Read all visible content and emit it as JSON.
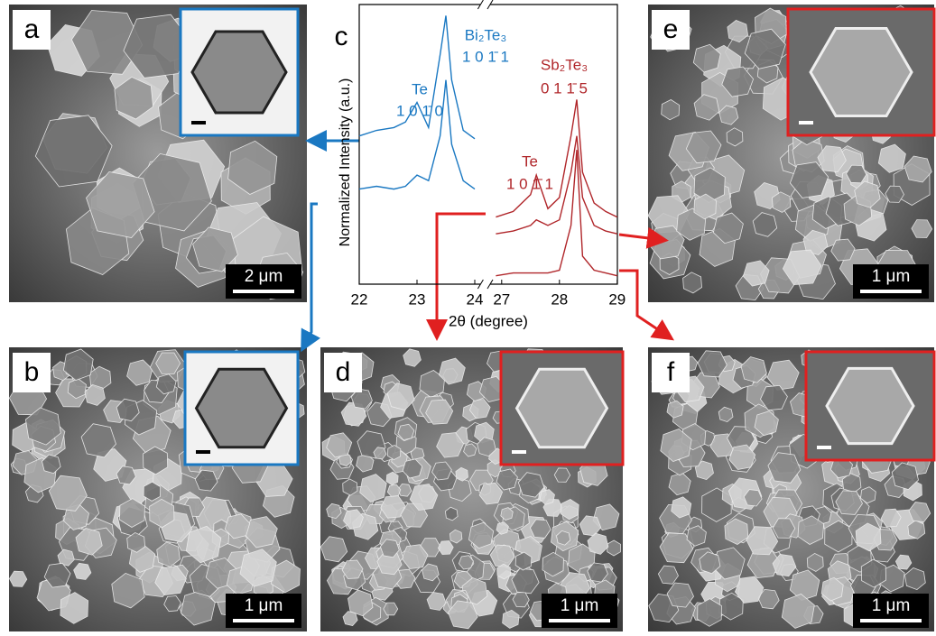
{
  "panels": [
    {
      "label": "a",
      "scale_bar": "2 μm"
    },
    {
      "label": "b",
      "scale_bar": "1 μm"
    },
    {
      "label": "d",
      "scale_bar": "1 μm"
    },
    {
      "label": "e",
      "scale_bar": "1 μm"
    },
    {
      "label": "f",
      "scale_bar": "1 μm"
    }
  ],
  "chart_data": {
    "type": "line",
    "panel_label": "c",
    "xlabel": "2θ (degree)",
    "ylabel": "Normalized Intensity (a.u.)",
    "xlim": [
      22,
      29
    ],
    "xbreak": [
      24.1,
      26.8
    ],
    "ylim": [
      0,
      1
    ],
    "xticks": [
      22,
      23,
      24,
      27,
      28,
      29
    ],
    "series": [
      {
        "color": "#1a78c2",
        "x": [
          22,
          22.3,
          22.6,
          22.8,
          23.0,
          23.2,
          23.4,
          23.5,
          23.6,
          23.8,
          24.0
        ],
        "values": [
          0.53,
          0.55,
          0.56,
          0.58,
          0.65,
          0.56,
          0.82,
          0.96,
          0.73,
          0.55,
          0.52
        ]
      },
      {
        "color": "#1a78c2",
        "x": [
          22,
          22.3,
          22.6,
          22.8,
          23.0,
          23.2,
          23.4,
          23.5,
          23.6,
          23.8,
          24.0
        ],
        "values": [
          0.34,
          0.35,
          0.34,
          0.35,
          0.39,
          0.37,
          0.53,
          0.73,
          0.5,
          0.37,
          0.34
        ]
      },
      {
        "color": "#b0262a",
        "x": [
          26.9,
          27.2,
          27.5,
          27.6,
          27.8,
          28.0,
          28.2,
          28.3,
          28.4,
          28.6,
          28.8,
          29.0
        ],
        "values": [
          0.24,
          0.26,
          0.32,
          0.39,
          0.27,
          0.31,
          0.53,
          0.66,
          0.4,
          0.29,
          0.26,
          0.24
        ]
      },
      {
        "color": "#b0262a",
        "x": [
          26.9,
          27.2,
          27.5,
          27.6,
          27.8,
          28.0,
          28.2,
          28.3,
          28.4,
          28.6,
          28.8,
          29.0
        ],
        "values": [
          0.18,
          0.19,
          0.21,
          0.23,
          0.21,
          0.23,
          0.4,
          0.53,
          0.31,
          0.21,
          0.19,
          0.18
        ]
      },
      {
        "color": "#b0262a",
        "x": [
          26.9,
          27.2,
          27.5,
          27.6,
          27.8,
          28.0,
          28.2,
          28.3,
          28.4,
          28.6,
          28.8,
          29.0
        ],
        "values": [
          0.03,
          0.04,
          0.04,
          0.04,
          0.04,
          0.05,
          0.21,
          0.48,
          0.1,
          0.05,
          0.04,
          0.03
        ]
      }
    ],
    "annotations": [
      {
        "text": "Te",
        "color": "#1a78c2"
      },
      {
        "text": "1 0 1̄ 0",
        "color": "#1a78c2"
      },
      {
        "text": "Bi₂Te₃",
        "color": "#1a78c2"
      },
      {
        "text": "1 0 1̄ 1",
        "color": "#1a78c2"
      },
      {
        "text": "Sb₂Te₃",
        "color": "#b0262a"
      },
      {
        "text": "0 1 1̄ 5",
        "color": "#b0262a"
      },
      {
        "text": "Te",
        "color": "#b0262a"
      },
      {
        "text": "1 0 1̄ 1",
        "color": "#b0262a"
      }
    ]
  }
}
